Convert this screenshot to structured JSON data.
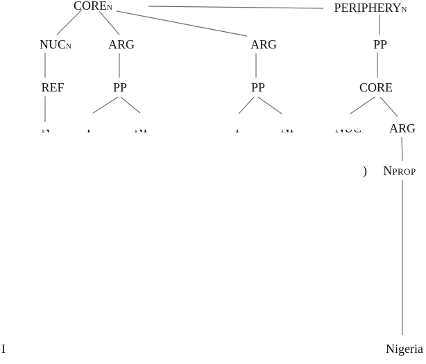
{
  "nodes": {
    "core_top": {
      "text": "CORE",
      "sub": "N"
    },
    "periphery": {
      "text": "PERIPHERY",
      "sub": "N"
    },
    "nuc": {
      "text": "NUC",
      "sub": "N"
    },
    "arg1": {
      "text": "ARG"
    },
    "arg2": {
      "text": "ARG"
    },
    "pp_top": {
      "text": "PP"
    },
    "ref": {
      "text": "REF"
    },
    "pp1": {
      "text": "PP"
    },
    "pp2": {
      "text": "PP"
    },
    "core_right": {
      "text": "CORE"
    },
    "row4_n": {
      "text": "N"
    },
    "row4_p1": {
      "text": "P"
    },
    "row4_np1": {
      "text": "NP"
    },
    "row4_p2": {
      "text": "P"
    },
    "row4_np2": {
      "text": "NP"
    },
    "row4_nuc": {
      "text": "NUC"
    },
    "arg_right": {
      "text": "ARG"
    },
    "paren": {
      "text": ")"
    },
    "nprop": {
      "text": "N",
      "sub": "PROP"
    },
    "left_letter": {
      "text": "I"
    },
    "nigeria": {
      "text": "Nigeria"
    }
  },
  "colors": {
    "edge": "#6e6e6e",
    "text": "#111111",
    "background": "#ffffff"
  }
}
